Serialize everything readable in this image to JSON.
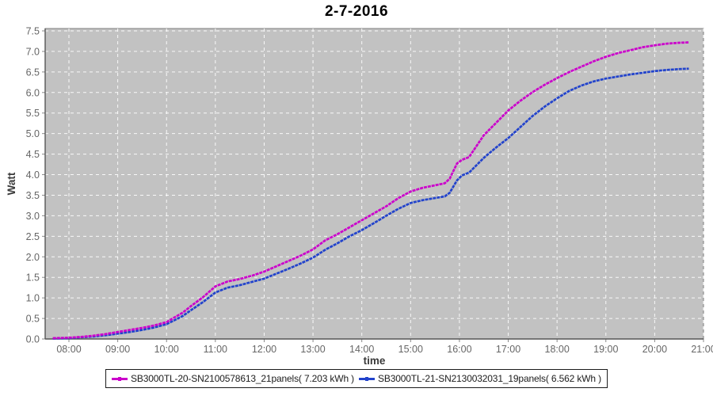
{
  "chart_data": {
    "type": "line",
    "title": "2-7-2016",
    "xlabel": "time",
    "ylabel": "Watt",
    "grid": true,
    "legend_position": "bottom",
    "plot_bg_color": "#C2C2C2",
    "grid_color": "#FFFFFF",
    "x_axis": {
      "start_hour": 8,
      "end_hour": 21,
      "tick_labels": [
        "08:00",
        "09:00",
        "10:00",
        "11:00",
        "12:00",
        "13:00",
        "14:00",
        "15:00",
        "16:00",
        "17:00",
        "18:00",
        "19:00",
        "20:00",
        "21:00"
      ]
    },
    "y_axis": {
      "min": 0.0,
      "max": 7.5,
      "tick_step": 0.5,
      "tick_labels": [
        "0.0",
        "0.5",
        "1.0",
        "1.5",
        "2.0",
        "2.5",
        "3.0",
        "3.5",
        "4.0",
        "4.5",
        "5.0",
        "5.5",
        "6.0",
        "6.5",
        "7.0",
        "7.5"
      ]
    },
    "series": [
      {
        "name": "SB3000TL-20-SN2100578613_21panels( 7.203 kWh )",
        "color": "#CB00CB",
        "total_kwh": 7.203,
        "points": [
          [
            7.67,
            0.02
          ],
          [
            8.0,
            0.03
          ],
          [
            8.25,
            0.05
          ],
          [
            8.5,
            0.08
          ],
          [
            8.75,
            0.12
          ],
          [
            9.0,
            0.17
          ],
          [
            9.25,
            0.22
          ],
          [
            9.5,
            0.27
          ],
          [
            9.75,
            0.33
          ],
          [
            10.0,
            0.41
          ],
          [
            10.17,
            0.53
          ],
          [
            10.33,
            0.64
          ],
          [
            10.5,
            0.8
          ],
          [
            10.75,
            1.02
          ],
          [
            11.0,
            1.28
          ],
          [
            11.25,
            1.4
          ],
          [
            11.5,
            1.46
          ],
          [
            11.75,
            1.54
          ],
          [
            12.0,
            1.64
          ],
          [
            12.25,
            1.77
          ],
          [
            12.5,
            1.9
          ],
          [
            12.75,
            2.03
          ],
          [
            13.0,
            2.18
          ],
          [
            13.25,
            2.4
          ],
          [
            13.5,
            2.55
          ],
          [
            13.75,
            2.72
          ],
          [
            14.0,
            2.89
          ],
          [
            14.25,
            3.06
          ],
          [
            14.5,
            3.23
          ],
          [
            14.75,
            3.43
          ],
          [
            15.0,
            3.59
          ],
          [
            15.25,
            3.68
          ],
          [
            15.5,
            3.74
          ],
          [
            15.7,
            3.79
          ],
          [
            15.8,
            3.9
          ],
          [
            15.95,
            4.27
          ],
          [
            16.05,
            4.36
          ],
          [
            16.2,
            4.43
          ],
          [
            16.5,
            4.96
          ],
          [
            16.75,
            5.26
          ],
          [
            17.0,
            5.56
          ],
          [
            17.25,
            5.8
          ],
          [
            17.5,
            6.01
          ],
          [
            17.75,
            6.19
          ],
          [
            18.0,
            6.35
          ],
          [
            18.25,
            6.5
          ],
          [
            18.5,
            6.63
          ],
          [
            18.75,
            6.76
          ],
          [
            19.0,
            6.87
          ],
          [
            19.25,
            6.96
          ],
          [
            19.5,
            7.03
          ],
          [
            19.75,
            7.1
          ],
          [
            20.0,
            7.15
          ],
          [
            20.25,
            7.19
          ],
          [
            20.5,
            7.21
          ],
          [
            20.7,
            7.22
          ]
        ]
      },
      {
        "name": "SB3000TL-21-SN2130032031_19panels( 6.562 kWh )",
        "color": "#2243CC",
        "total_kwh": 6.562,
        "points": [
          [
            7.67,
            0.01
          ],
          [
            8.0,
            0.02
          ],
          [
            8.25,
            0.04
          ],
          [
            8.5,
            0.06
          ],
          [
            8.75,
            0.09
          ],
          [
            9.0,
            0.13
          ],
          [
            9.25,
            0.17
          ],
          [
            9.5,
            0.22
          ],
          [
            9.75,
            0.28
          ],
          [
            10.0,
            0.36
          ],
          [
            10.17,
            0.46
          ],
          [
            10.33,
            0.56
          ],
          [
            10.5,
            0.7
          ],
          [
            10.75,
            0.9
          ],
          [
            11.0,
            1.13
          ],
          [
            11.25,
            1.25
          ],
          [
            11.5,
            1.31
          ],
          [
            11.75,
            1.39
          ],
          [
            12.0,
            1.47
          ],
          [
            12.25,
            1.59
          ],
          [
            12.5,
            1.71
          ],
          [
            12.75,
            1.84
          ],
          [
            13.0,
            1.98
          ],
          [
            13.25,
            2.17
          ],
          [
            13.5,
            2.33
          ],
          [
            13.75,
            2.5
          ],
          [
            14.0,
            2.65
          ],
          [
            14.25,
            2.82
          ],
          [
            14.5,
            3.0
          ],
          [
            14.75,
            3.17
          ],
          [
            15.0,
            3.31
          ],
          [
            15.25,
            3.38
          ],
          [
            15.5,
            3.43
          ],
          [
            15.7,
            3.47
          ],
          [
            15.8,
            3.56
          ],
          [
            15.95,
            3.86
          ],
          [
            16.05,
            3.98
          ],
          [
            16.2,
            4.05
          ],
          [
            16.5,
            4.41
          ],
          [
            16.75,
            4.66
          ],
          [
            17.0,
            4.89
          ],
          [
            17.25,
            5.16
          ],
          [
            17.5,
            5.43
          ],
          [
            17.75,
            5.66
          ],
          [
            18.0,
            5.86
          ],
          [
            18.25,
            6.04
          ],
          [
            18.5,
            6.17
          ],
          [
            18.75,
            6.27
          ],
          [
            19.0,
            6.34
          ],
          [
            19.25,
            6.39
          ],
          [
            19.5,
            6.44
          ],
          [
            19.75,
            6.48
          ],
          [
            20.0,
            6.52
          ],
          [
            20.25,
            6.55
          ],
          [
            20.5,
            6.57
          ],
          [
            20.7,
            6.58
          ]
        ]
      }
    ]
  }
}
